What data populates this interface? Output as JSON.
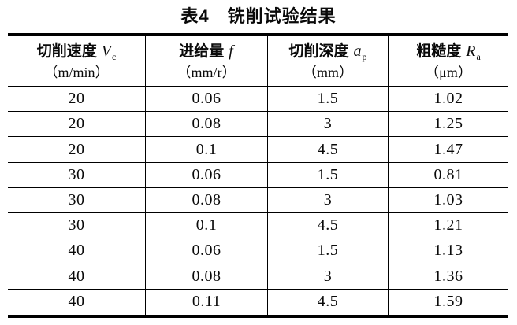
{
  "title": "表4　铣削试验结果",
  "table": {
    "columns": [
      {
        "label": "切削速度",
        "symbol": "V",
        "sub": "c",
        "unit": "（m/min）"
      },
      {
        "label": "进给量",
        "symbol": "f",
        "sub": "",
        "unit": "（mm/r）"
      },
      {
        "label": "切削深度",
        "symbol": "a",
        "sub": "p",
        "unit": "（mm）"
      },
      {
        "label": "粗糙度",
        "symbol": "R",
        "sub": "a",
        "unit": "（μm）"
      }
    ],
    "rows": [
      [
        "20",
        "0.06",
        "1.5",
        "1.02"
      ],
      [
        "20",
        "0.08",
        "3",
        "1.25"
      ],
      [
        "20",
        "0.1",
        "4.5",
        "1.47"
      ],
      [
        "30",
        "0.06",
        "1.5",
        "0.81"
      ],
      [
        "30",
        "0.08",
        "3",
        "1.03"
      ],
      [
        "30",
        "0.1",
        "4.5",
        "1.21"
      ],
      [
        "40",
        "0.06",
        "1.5",
        "1.13"
      ],
      [
        "40",
        "0.08",
        "3",
        "1.36"
      ],
      [
        "40",
        "0.11",
        "4.5",
        "1.59"
      ]
    ]
  },
  "chart_data": {
    "type": "table",
    "title": "表4 铣削试验结果",
    "columns": [
      "切削速度 Vc (m/min)",
      "进给量 f (mm/r)",
      "切削深度 ap (mm)",
      "粗糙度 Ra (μm)"
    ],
    "rows": [
      [
        20,
        0.06,
        1.5,
        1.02
      ],
      [
        20,
        0.08,
        3,
        1.25
      ],
      [
        20,
        0.1,
        4.5,
        1.47
      ],
      [
        30,
        0.06,
        1.5,
        0.81
      ],
      [
        30,
        0.08,
        3,
        1.03
      ],
      [
        30,
        0.1,
        4.5,
        1.21
      ],
      [
        40,
        0.06,
        1.5,
        1.13
      ],
      [
        40,
        0.08,
        3,
        1.36
      ],
      [
        40,
        0.11,
        4.5,
        1.59
      ]
    ],
    "colors": {
      "text": "#0a0a0a",
      "border": "#000000",
      "background": "#ffffff"
    }
  }
}
